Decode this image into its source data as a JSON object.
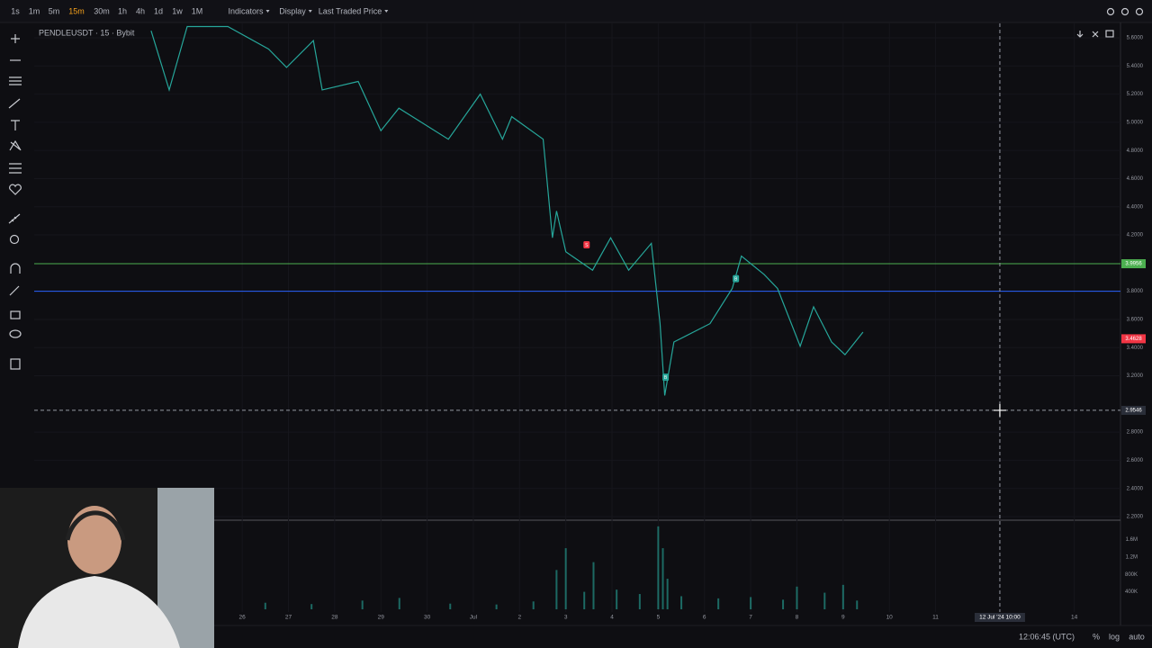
{
  "toolbar": {
    "intervals": [
      "1s",
      "1m",
      "5m",
      "15m",
      "30m",
      "1h",
      "4h",
      "1d",
      "1w",
      "1M"
    ],
    "active_index": 3,
    "menus": [
      "Indicators",
      "Display",
      "Last Traded Price"
    ]
  },
  "chart": {
    "type": "line",
    "symbol": "PENDLEUSDT · 15 · Bybit",
    "color": "#26a69a",
    "x": [
      -1.97,
      -1.58,
      -1.19,
      -0.31,
      0.57,
      0.96,
      1.54,
      1.73,
      2.51,
      3.0,
      3.39,
      4.46,
      5.15,
      5.63,
      5.83,
      6.51,
      6.71,
      6.8,
      7.0,
      7.58,
      7.97,
      8.36,
      8.85,
      9.04,
      9.14,
      9.34,
      10.12,
      10.6,
      10.8,
      11.29,
      11.58,
      12.07,
      12.36,
      12.75,
      13.04,
      13.43
    ],
    "values": [
      5.65,
      5.23,
      5.68,
      5.68,
      5.52,
      5.39,
      5.58,
      5.23,
      5.29,
      4.94,
      5.1,
      4.88,
      5.2,
      4.88,
      5.04,
      4.88,
      4.18,
      4.37,
      4.08,
      3.95,
      4.18,
      3.95,
      4.14,
      3.57,
      3.06,
      3.44,
      3.57,
      3.82,
      4.05,
      3.92,
      3.82,
      3.41,
      3.69,
      3.44,
      3.35,
      3.51
    ],
    "xlim": [
      -4.5,
      19
    ],
    "ylim": [
      2.2,
      5.6
    ],
    "yticks": [
      {
        "value": 5.6,
        "label": "5.6000"
      },
      {
        "value": 5.4,
        "label": "5.4000"
      },
      {
        "value": 5.2,
        "label": "5.2000"
      },
      {
        "value": 5.0,
        "label": "5.0000"
      },
      {
        "value": 4.8,
        "label": "4.8000"
      },
      {
        "value": 4.6,
        "label": "4.6000"
      },
      {
        "value": 4.4,
        "label": "4.4000"
      },
      {
        "value": 4.2,
        "label": "4.2000"
      },
      {
        "value": 3.8,
        "label": "3.8000"
      },
      {
        "value": 3.6,
        "label": "3.6000"
      },
      {
        "value": 3.4,
        "label": "3.4000"
      },
      {
        "value": 3.2,
        "label": "3.2000"
      },
      {
        "value": 2.8,
        "label": "2.8000"
      },
      {
        "value": 2.6,
        "label": "2.6000"
      },
      {
        "value": 2.4,
        "label": "2.4000"
      },
      {
        "value": 2.2,
        "label": "2.2000"
      }
    ],
    "xticks": [
      {
        "value": 0,
        "label": "26"
      },
      {
        "value": 1,
        "label": "27"
      },
      {
        "value": 2,
        "label": "28"
      },
      {
        "value": 3,
        "label": "29"
      },
      {
        "value": 4,
        "label": "30"
      },
      {
        "value": 5,
        "label": "Jul"
      },
      {
        "value": 6,
        "label": "2"
      },
      {
        "value": 7,
        "label": "3"
      },
      {
        "value": 8,
        "label": "4"
      },
      {
        "value": 9,
        "label": "5"
      },
      {
        "value": 10,
        "label": "6"
      },
      {
        "value": 11,
        "label": "7"
      },
      {
        "value": 12,
        "label": "8"
      },
      {
        "value": 13,
        "label": "9"
      },
      {
        "value": 14,
        "label": "10"
      },
      {
        "value": 15,
        "label": "11"
      },
      {
        "value": 18,
        "label": "14"
      }
    ],
    "price_lines": [
      {
        "price": 3.9956,
        "color": "#4caf50"
      },
      {
        "price": 3.8,
        "color": "#2962ff"
      }
    ],
    "last_price": {
      "price": 3.4628,
      "color": "#f23645"
    },
    "crosshair": {
      "price": 2.9546,
      "x": 16.39,
      "label": "12 Jul '24  10:00"
    },
    "markers": [
      {
        "label": "S",
        "x": 7.45,
        "price": 4.13,
        "color": "#f23645"
      },
      {
        "label": "B",
        "x": 9.16,
        "price": 3.19,
        "color": "#26a69a"
      },
      {
        "label": "B",
        "x": 10.68,
        "price": 3.89,
        "color": "#26a69a"
      }
    ],
    "volume": {
      "color": "#26a69a",
      "ylim": [
        0,
        2000000
      ],
      "yticks": [
        {
          "value": 1600000,
          "label": "1.6M"
        },
        {
          "value": 1200000,
          "label": "1.2M"
        },
        {
          "value": 800000,
          "label": "800K"
        },
        {
          "value": 400000,
          "label": "400K"
        }
      ],
      "x": [
        0.5,
        1.5,
        2.6,
        3.4,
        4.5,
        5.5,
        6.3,
        6.8,
        7.0,
        7.4,
        7.6,
        8.1,
        8.6,
        9.0,
        9.1,
        9.2,
        9.5,
        10.3,
        11.0,
        11.7,
        12.0,
        12.6,
        13.0,
        13.3
      ],
      "values": [
        150000,
        120000,
        200000,
        260000,
        130000,
        110000,
        180000,
        900000,
        1400000,
        400000,
        1080000,
        450000,
        350000,
        1900000,
        1400000,
        700000,
        300000,
        250000,
        280000,
        220000,
        520000,
        380000,
        560000,
        200000
      ]
    }
  },
  "status": {
    "time": "12:06:45 (UTC)",
    "buttons": [
      "%",
      "log",
      "auto"
    ]
  }
}
